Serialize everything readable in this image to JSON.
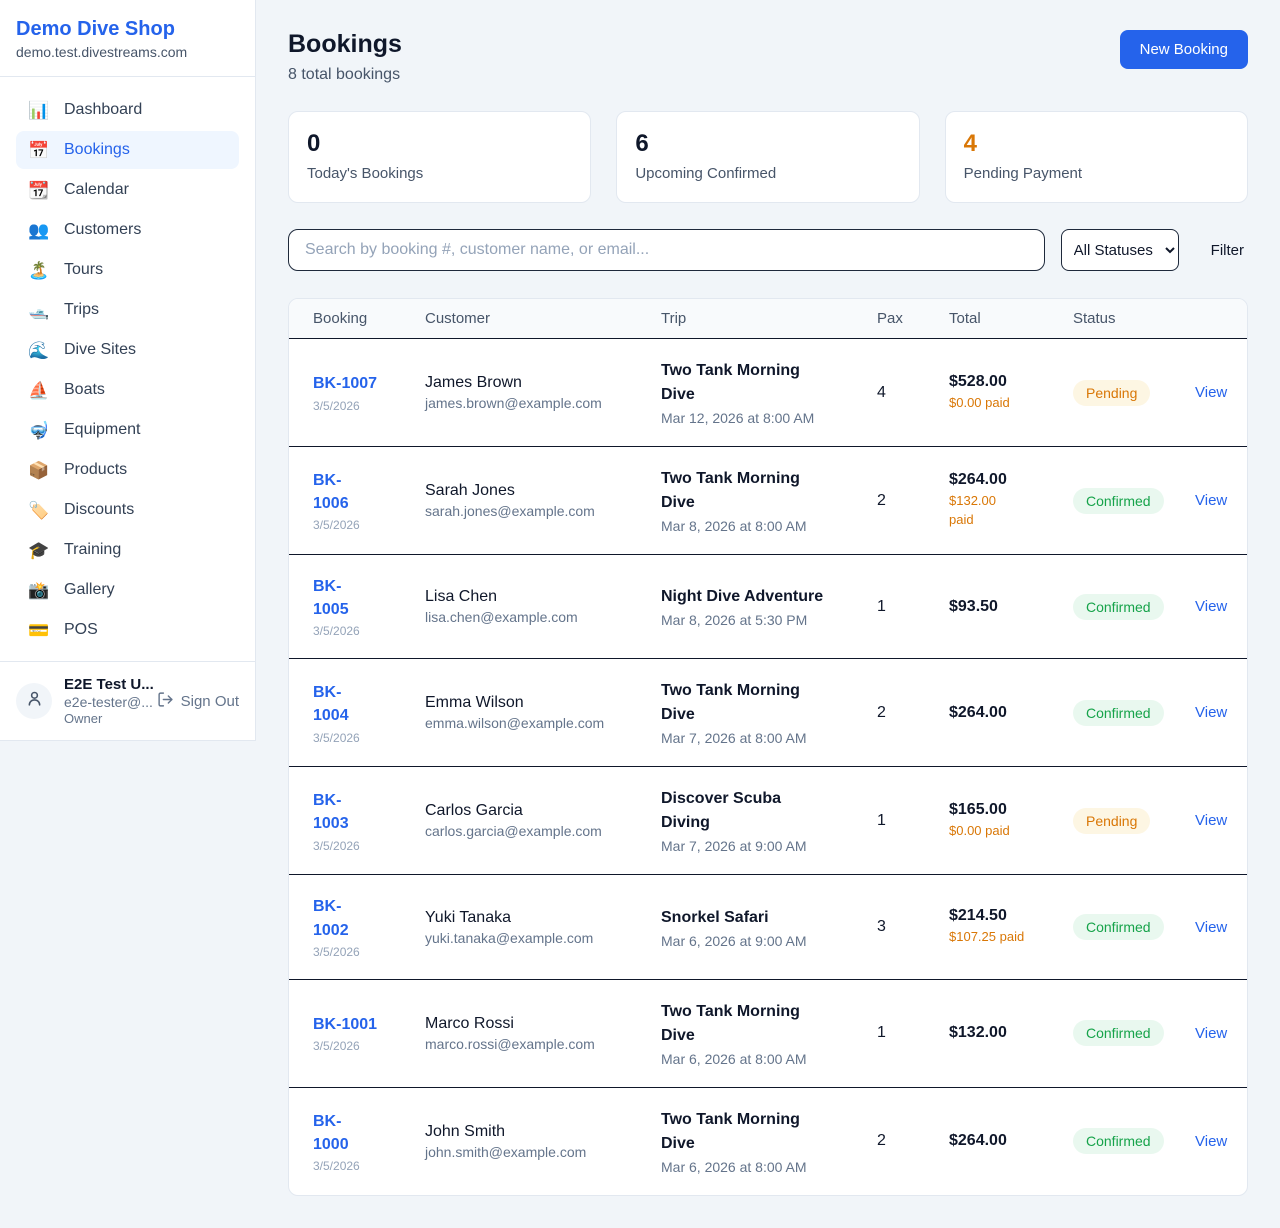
{
  "brand": {
    "name": "Demo Dive Shop",
    "domain": "demo.test.divestreams.com"
  },
  "sidebar": {
    "items": [
      {
        "icon": "📊",
        "icon_name": "dashboard-icon",
        "label": "Dashboard",
        "active": false
      },
      {
        "icon": "📅",
        "icon_name": "bookings-calendar-icon",
        "label": "Bookings",
        "active": true
      },
      {
        "icon": "📆",
        "icon_name": "calendar-icon",
        "label": "Calendar",
        "active": false
      },
      {
        "icon": "👥",
        "icon_name": "customers-icon",
        "label": "Customers",
        "active": false
      },
      {
        "icon": "🏝️",
        "icon_name": "tours-island-icon",
        "label": "Tours",
        "active": false
      },
      {
        "icon": "🛥️",
        "icon_name": "trips-boat-icon",
        "label": "Trips",
        "active": false
      },
      {
        "icon": "🌊",
        "icon_name": "dive-sites-wave-icon",
        "label": "Dive Sites",
        "active": false
      },
      {
        "icon": "⛵",
        "icon_name": "boats-sailboat-icon",
        "label": "Boats",
        "active": false
      },
      {
        "icon": "🤿",
        "icon_name": "equipment-mask-icon",
        "label": "Equipment",
        "active": false
      },
      {
        "icon": "📦",
        "icon_name": "products-package-icon",
        "label": "Products",
        "active": false
      },
      {
        "icon": "🏷️",
        "icon_name": "discounts-tag-icon",
        "label": "Discounts",
        "active": false
      },
      {
        "icon": "🎓",
        "icon_name": "training-cap-icon",
        "label": "Training",
        "active": false
      },
      {
        "icon": "📸",
        "icon_name": "gallery-camera-icon",
        "label": "Gallery",
        "active": false
      },
      {
        "icon": "💳",
        "icon_name": "pos-card-icon",
        "label": "POS",
        "active": false
      }
    ]
  },
  "user": {
    "name": "E2E Test U...",
    "email": "e2e-tester@...",
    "role": "Owner",
    "sign_out": "Sign Out"
  },
  "header": {
    "title": "Bookings",
    "subtitle": "8 total bookings",
    "new_booking": "New Booking"
  },
  "stats": [
    {
      "value": "0",
      "label": "Today's Bookings",
      "color": "#0f172a"
    },
    {
      "value": "6",
      "label": "Upcoming Confirmed",
      "color": "#0f172a"
    },
    {
      "value": "4",
      "label": "Pending Payment",
      "color": "#d97706"
    }
  ],
  "filters": {
    "search_placeholder": "Search by booking #, customer name, or email...",
    "status_selected": "All Statuses",
    "filter_label": "Filter"
  },
  "table": {
    "columns": [
      "Booking",
      "Customer",
      "Trip",
      "Pax",
      "Total",
      "Status"
    ],
    "rows": [
      {
        "ref": "BK-1007",
        "date": "3/5/2026",
        "customer": "James Brown",
        "email": "james.brown@example.com",
        "trip": "Two Tank Morning\nDive",
        "trip_time": "Mar 12, 2026 at 8:00 AM",
        "pax": "4",
        "total": "$528.00",
        "paid": "$0.00 paid",
        "status": "Pending",
        "view": "View"
      },
      {
        "ref": "BK-\n1006",
        "date": "3/5/2026",
        "customer": "Sarah Jones",
        "email": "sarah.jones@example.com",
        "trip": "Two Tank Morning\nDive",
        "trip_time": "Mar 8, 2026 at 8:00 AM",
        "pax": "2",
        "total": "$264.00",
        "paid": "$132.00\npaid",
        "status": "Confirmed",
        "view": "View"
      },
      {
        "ref": "BK-\n1005",
        "date": "3/5/2026",
        "customer": "Lisa Chen",
        "email": "lisa.chen@example.com",
        "trip": "Night Dive Adventure",
        "trip_time": "Mar 8, 2026 at 5:30 PM",
        "pax": "1",
        "total": "$93.50",
        "paid": "",
        "status": "Confirmed",
        "view": "View"
      },
      {
        "ref": "BK-\n1004",
        "date": "3/5/2026",
        "customer": "Emma Wilson",
        "email": "emma.wilson@example.com",
        "trip": "Two Tank Morning\nDive",
        "trip_time": "Mar 7, 2026 at 8:00 AM",
        "pax": "2",
        "total": "$264.00",
        "paid": "",
        "status": "Confirmed",
        "view": "View"
      },
      {
        "ref": "BK-\n1003",
        "date": "3/5/2026",
        "customer": "Carlos Garcia",
        "email": "carlos.garcia@example.com",
        "trip": "Discover Scuba\nDiving",
        "trip_time": "Mar 7, 2026 at 9:00 AM",
        "pax": "1",
        "total": "$165.00",
        "paid": "$0.00 paid",
        "status": "Pending",
        "view": "View"
      },
      {
        "ref": "BK-\n1002",
        "date": "3/5/2026",
        "customer": "Yuki Tanaka",
        "email": "yuki.tanaka@example.com",
        "trip": "Snorkel Safari",
        "trip_time": "Mar 6, 2026 at 9:00 AM",
        "pax": "3",
        "total": "$214.50",
        "paid": "$107.25 paid",
        "status": "Confirmed",
        "view": "View"
      },
      {
        "ref": "BK-1001",
        "date": "3/5/2026",
        "customer": "Marco Rossi",
        "email": "marco.rossi@example.com",
        "trip": "Two Tank Morning\nDive",
        "trip_time": "Mar 6, 2026 at 8:00 AM",
        "pax": "1",
        "total": "$132.00",
        "paid": "",
        "status": "Confirmed",
        "view": "View"
      },
      {
        "ref": "BK-\n1000",
        "date": "3/5/2026",
        "customer": "John Smith",
        "email": "john.smith@example.com",
        "trip": "Two Tank Morning\nDive",
        "trip_time": "Mar 6, 2026 at 8:00 AM",
        "pax": "2",
        "total": "$264.00",
        "paid": "",
        "status": "Confirmed",
        "view": "View"
      }
    ]
  },
  "colors": {
    "accent": "#2563eb",
    "pending_text": "#d97706",
    "pending_bg": "#fdf6e3",
    "confirmed_text": "#16a34a",
    "confirmed_bg": "#e9f8ef",
    "link": "#2563eb",
    "page_bg": "#f1f5f9"
  }
}
